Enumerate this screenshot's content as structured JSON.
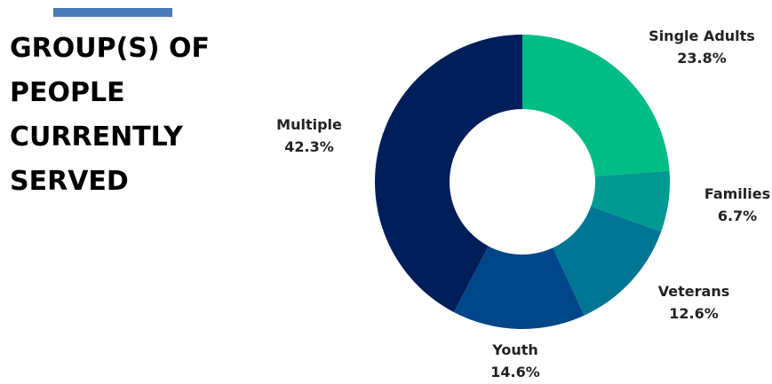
{
  "title_lines": [
    "GROUP(S) OF",
    "PEOPLE",
    "CURRENTLY",
    "SERVED"
  ],
  "accent_color": "#4a7ab8",
  "chart_data": {
    "type": "pie",
    "style": "donut",
    "title": "GROUP(S) OF PEOPLE CURRENTLY SERVED",
    "slices": [
      {
        "label": "Single Adults",
        "value": 23.8,
        "value_label": "23.8%",
        "color": "#00bd85"
      },
      {
        "label": "Families",
        "value": 6.7,
        "value_label": "6.7%",
        "color": "#009a93"
      },
      {
        "label": "Veterans",
        "value": 12.6,
        "value_label": "12.6%",
        "color": "#007594"
      },
      {
        "label": "Youth",
        "value": 14.6,
        "value_label": "14.6%",
        "color": "#00478a"
      },
      {
        "label": "Multiple",
        "value": 42.3,
        "value_label": "42.3%",
        "color": "#001e59"
      }
    ]
  }
}
